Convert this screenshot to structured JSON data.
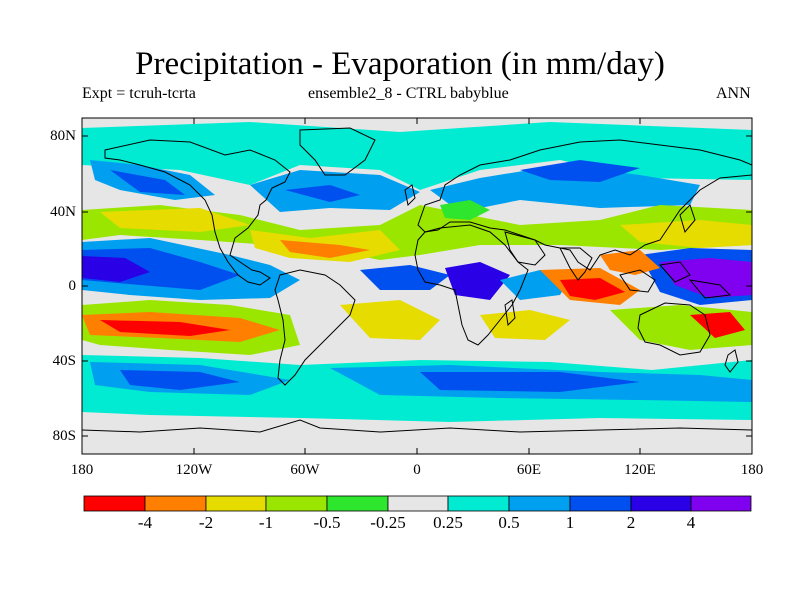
{
  "title": "Precipitation - Evaporation (in mm/day)",
  "subtitle_left": "Expt = tcruh-tcrta",
  "subtitle_center": "ensemble2_8 - CTRL babyblue",
  "subtitle_right": "ANN",
  "lat_labels": [
    "80N",
    "40N",
    "0",
    "40S",
    "80S"
  ],
  "lon_labels": [
    "180",
    "120W",
    "60W",
    "0",
    "60E",
    "120E",
    "180"
  ],
  "colorbar": {
    "colors": [
      "#ff0000",
      "#ff7f00",
      "#e6dc00",
      "#9be600",
      "#2ee62e",
      "#e6e6e6",
      "#00ebd2",
      "#009ff0",
      "#0050f0",
      "#2a00e6",
      "#8000f0"
    ],
    "labels": [
      "-4",
      "-2",
      "-1",
      "-0.5",
      "-0.25",
      "0.25",
      "0.5",
      "1",
      "2",
      "4"
    ]
  },
  "colors": {
    "land_outline": "#000000",
    "background": "#e6e6e6"
  }
}
